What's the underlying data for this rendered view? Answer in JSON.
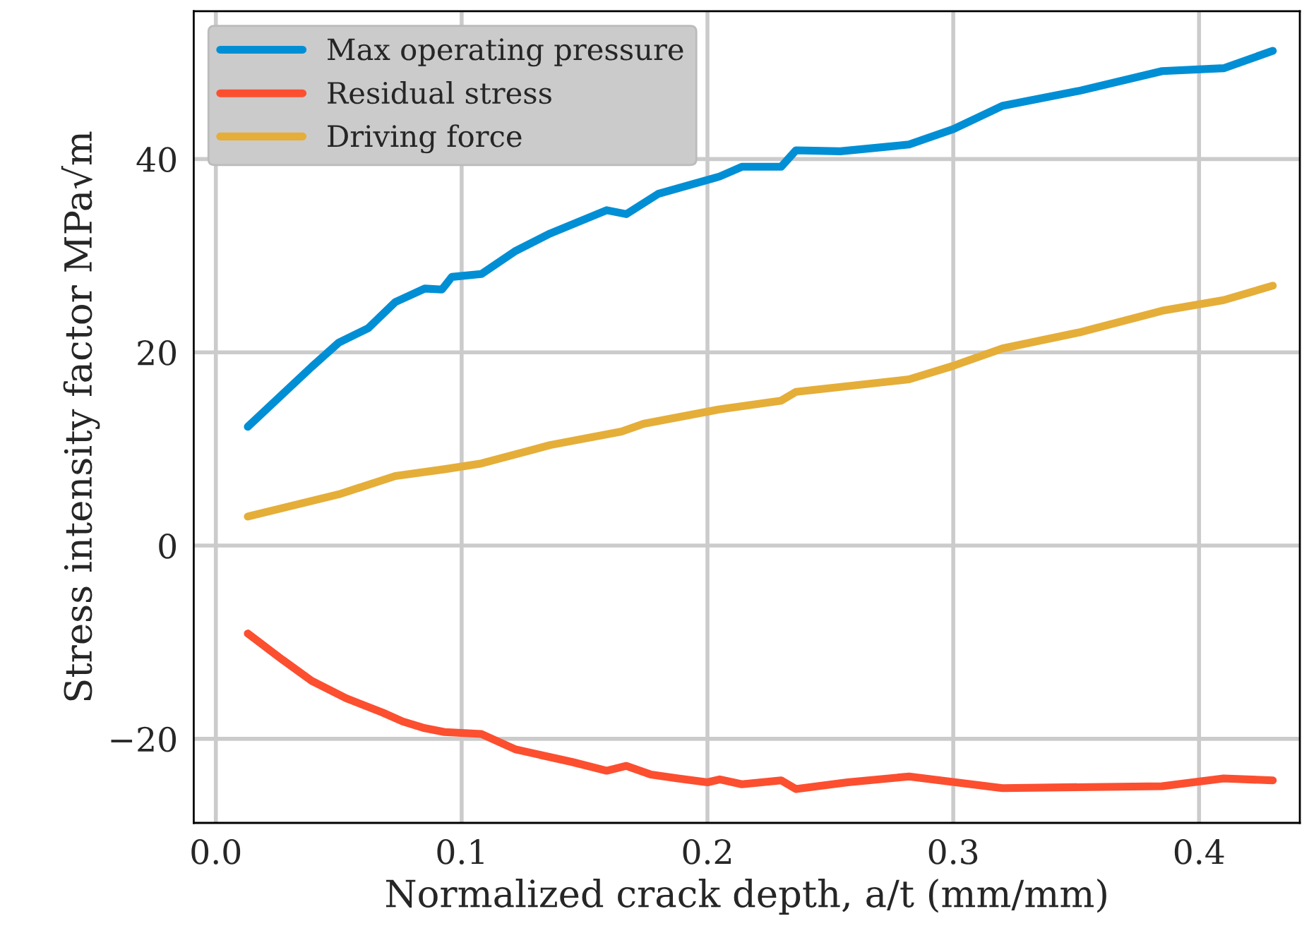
{
  "chart_data": {
    "type": "line",
    "xlabel": "Normalized crack depth, a/t (mm/mm)",
    "ylabel": "Stress intensity factor MPa√m",
    "xlim": [
      -0.009,
      0.441
    ],
    "xticks": [
      {
        "value": 0,
        "label": "0.0"
      },
      0.1,
      0.2,
      0.3,
      0.4
    ],
    "ylim": [
      -28.7,
      55.3
    ],
    "yticks": [
      {
        "value": -20,
        "label": "−20"
      },
      0,
      20,
      40
    ],
    "grid": true,
    "legend": "top left",
    "line_style": "solid",
    "marker": "none",
    "series": [
      {
        "name": "Max operating pressure",
        "color": "#008fd5",
        "x": [
          0.013,
          0.039,
          0.05,
          0.062,
          0.073,
          0.085,
          0.092,
          0.096,
          0.108,
          0.122,
          0.136,
          0.159,
          0.167,
          0.18,
          0.205,
          0.214,
          0.23,
          0.236,
          0.254,
          0.282,
          0.3,
          0.32,
          0.352,
          0.385,
          0.41,
          0.43
        ],
        "values": [
          12.3,
          18.5,
          21.0,
          22.5,
          25.2,
          26.6,
          26.5,
          27.8,
          28.1,
          30.5,
          32.3,
          34.7,
          34.3,
          36.4,
          38.2,
          39.2,
          39.2,
          40.9,
          40.8,
          41.5,
          43.1,
          45.5,
          47.1,
          49.1,
          49.4,
          51.2
        ]
      },
      {
        "name": "Residual stress",
        "color": "#fc4f30",
        "x": [
          0.013,
          0.027,
          0.039,
          0.053,
          0.068,
          0.076,
          0.085,
          0.093,
          0.108,
          0.122,
          0.145,
          0.159,
          0.167,
          0.177,
          0.188,
          0.2,
          0.205,
          0.214,
          0.23,
          0.236,
          0.257,
          0.282,
          0.32,
          0.385,
          0.41,
          0.43
        ],
        "values": [
          -9.1,
          -11.8,
          -14.0,
          -15.8,
          -17.3,
          -18.2,
          -18.9,
          -19.3,
          -19.5,
          -21.1,
          -22.4,
          -23.3,
          -22.8,
          -23.7,
          -24.1,
          -24.5,
          -24.2,
          -24.7,
          -24.3,
          -25.2,
          -24.5,
          -23.9,
          -25.1,
          -24.9,
          -24.1,
          -24.3
        ]
      },
      {
        "name": "Driving force",
        "color": "#e5ae38",
        "x": [
          0.013,
          0.05,
          0.073,
          0.093,
          0.108,
          0.136,
          0.165,
          0.174,
          0.205,
          0.23,
          0.236,
          0.282,
          0.3,
          0.32,
          0.352,
          0.385,
          0.41,
          0.43
        ],
        "values": [
          3.0,
          5.3,
          7.2,
          7.9,
          8.5,
          10.4,
          11.8,
          12.6,
          14.1,
          15.0,
          15.9,
          17.2,
          18.6,
          20.4,
          22.1,
          24.3,
          25.4,
          26.9
        ]
      }
    ]
  }
}
